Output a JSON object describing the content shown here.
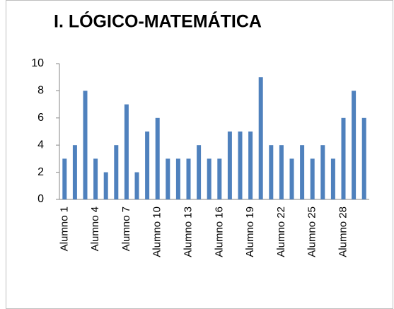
{
  "chart_data": {
    "type": "bar",
    "title": "I. LÓGICO-MATEMÁTICA",
    "categories": [
      "Alumno 1",
      null,
      null,
      "Alumno 4",
      null,
      null,
      "Alumno 7",
      null,
      null,
      "Alumno 10",
      null,
      null,
      "Alumno 13",
      null,
      null,
      "Alumno 16",
      null,
      null,
      "Alumno 19",
      null,
      null,
      "Alumno 22",
      null,
      null,
      "Alumno 25",
      null,
      null,
      "Alumno 28",
      null,
      null
    ],
    "values": [
      3,
      4,
      8,
      3,
      2,
      4,
      7,
      2,
      5,
      6,
      3,
      3,
      3,
      4,
      3,
      3,
      5,
      5,
      5,
      9,
      4,
      4,
      3,
      4,
      3,
      4,
      3,
      6,
      8,
      6
    ],
    "color": "#4f81bd",
    "ylim": [
      0,
      10
    ],
    "yticks": [
      0,
      2,
      4,
      6,
      8,
      10
    ],
    "grid": false
  }
}
